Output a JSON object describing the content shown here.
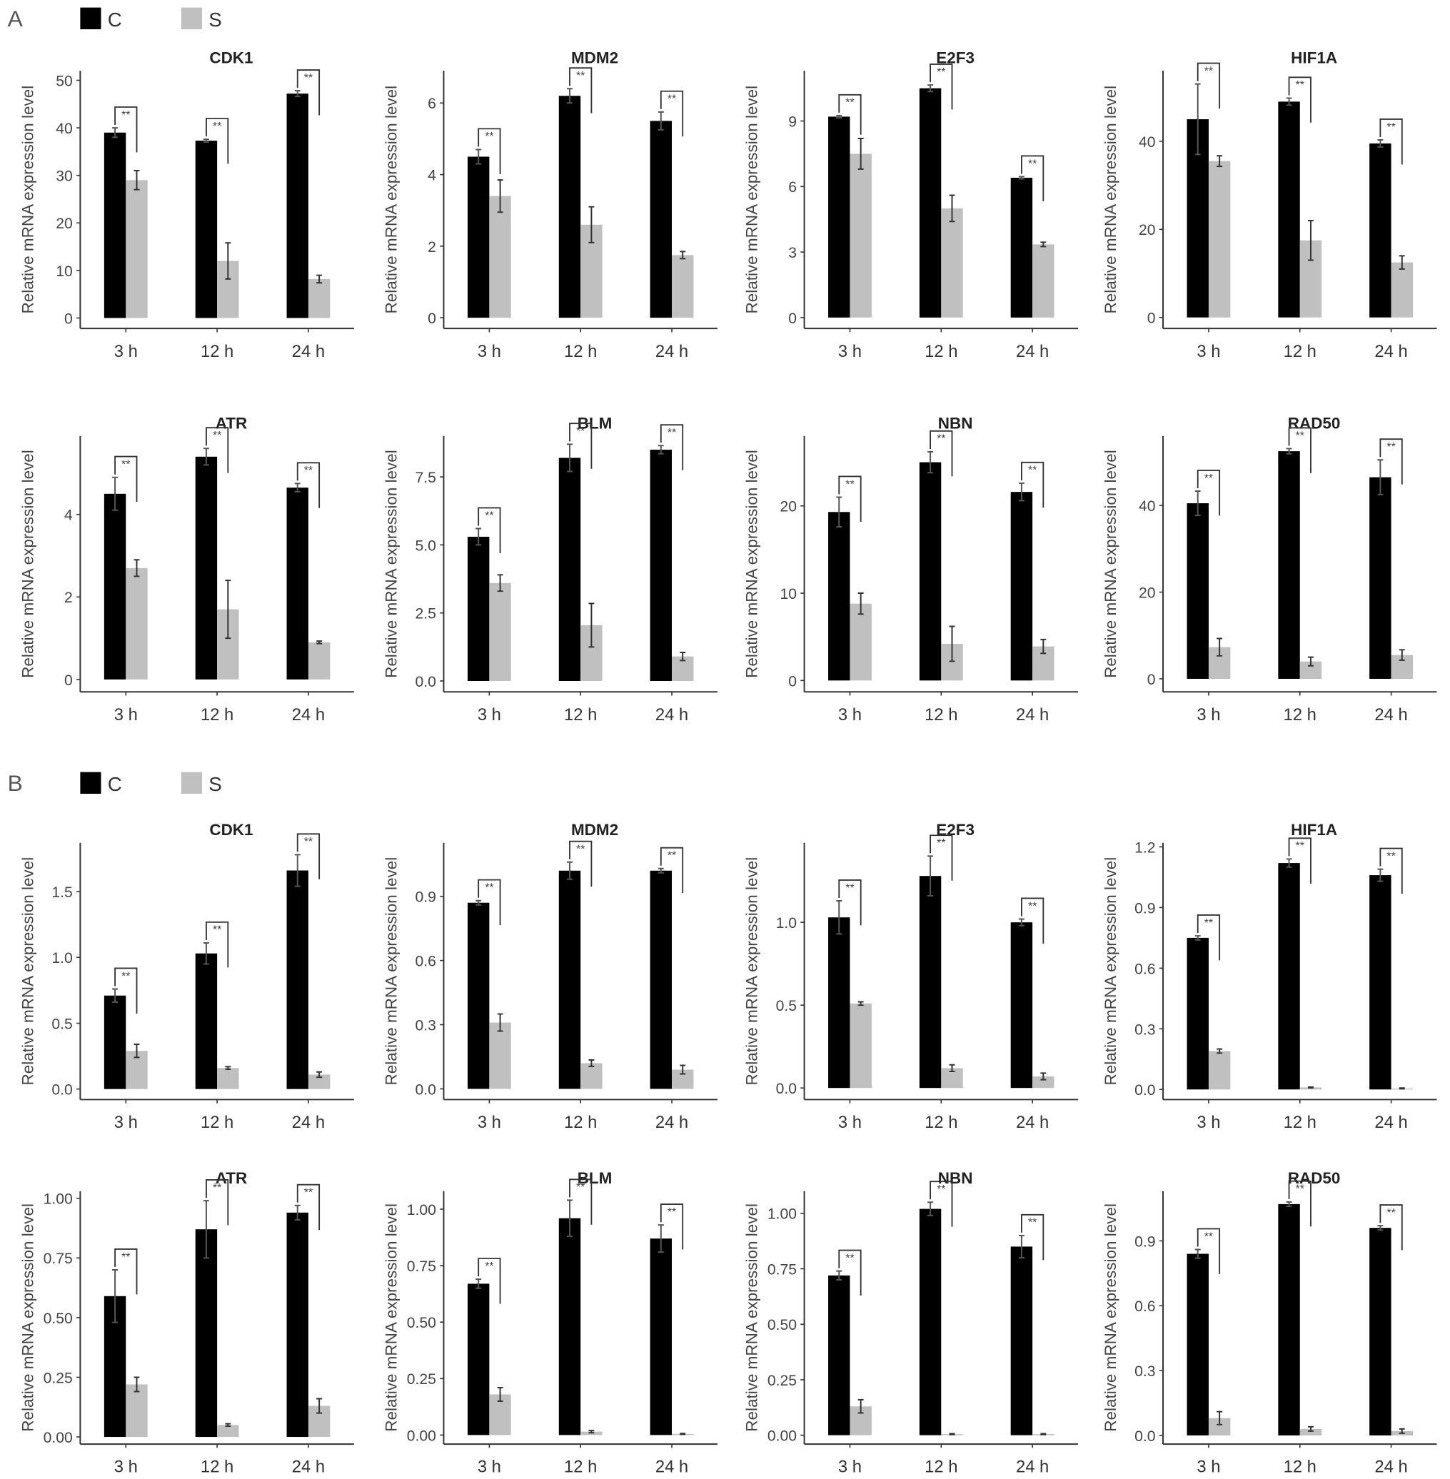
{
  "panel_labels": [
    "A",
    "B"
  ],
  "chart_data": [
    {
      "type": "bar",
      "title": "CDK1",
      "y_label": "Relative mRNA expression level",
      "categories": [
        "3 h",
        "12 h",
        "24 h"
      ],
      "series": [
        {
          "name": "C",
          "color": "#000000",
          "values": [
            39,
            37.3,
            47.2
          ],
          "errors": [
            1,
            0.3,
            0.6
          ]
        },
        {
          "name": "S",
          "color": "#c0c0c0",
          "values": [
            29,
            12,
            8.2
          ],
          "errors": [
            2,
            3.8,
            0.8
          ]
        }
      ],
      "ylim": [
        -2.2,
        52
      ],
      "yticks": [
        0,
        10,
        20,
        30,
        40,
        50
      ],
      "annotations": [
        "**",
        "**",
        "**"
      ]
    },
    {
      "type": "bar",
      "title": "MDM2",
      "y_label": "Relative mRNA expression level",
      "categories": [
        "3 h",
        "12 h",
        "24 h"
      ],
      "series": [
        {
          "name": "C",
          "color": "#000000",
          "values": [
            4.5,
            6.2,
            5.5
          ],
          "errors": [
            0.2,
            0.2,
            0.25
          ]
        },
        {
          "name": "S",
          "color": "#c0c0c0",
          "values": [
            3.4,
            2.6,
            1.75
          ],
          "errors": [
            0.45,
            0.5,
            0.1
          ]
        }
      ],
      "ylim": [
        -0.3,
        6.9
      ],
      "yticks": [
        0,
        2,
        4,
        6
      ],
      "annotations": [
        "**",
        "**",
        "**"
      ]
    },
    {
      "type": "bar",
      "title": "E2F3",
      "y_label": "Relative mRNA expression level",
      "categories": [
        "3 h",
        "12 h",
        "24 h"
      ],
      "series": [
        {
          "name": "C",
          "color": "#000000",
          "values": [
            9.2,
            10.5,
            6.4
          ],
          "errors": [
            0.05,
            0.15,
            0.05
          ]
        },
        {
          "name": "S",
          "color": "#c0c0c0",
          "values": [
            7.5,
            5.0,
            3.35
          ],
          "errors": [
            0.7,
            0.6,
            0.1
          ]
        }
      ],
      "ylim": [
        -0.5,
        11.3
      ],
      "yticks": [
        0,
        3,
        6,
        9
      ],
      "annotations": [
        "**",
        "**",
        "**"
      ]
    },
    {
      "type": "bar",
      "title": "HIF1A",
      "y_label": "Relative mRNA expression level",
      "categories": [
        "3 h",
        "12 h",
        "24 h"
      ],
      "series": [
        {
          "name": "C",
          "color": "#000000",
          "values": [
            45,
            49,
            39.5
          ],
          "errors": [
            8,
            0.8,
            0.8
          ]
        },
        {
          "name": "S",
          "color": "#c0c0c0",
          "values": [
            35.5,
            17.5,
            12.5
          ],
          "errors": [
            1.2,
            4.5,
            1.5
          ]
        }
      ],
      "ylim": [
        -2.5,
        56
      ],
      "yticks": [
        0,
        20,
        40
      ],
      "annotations": [
        "**",
        "**",
        "**"
      ]
    },
    {
      "type": "bar",
      "title": "ATR",
      "y_label": "Relative mRNA expression level",
      "categories": [
        "3 h",
        "12 h",
        "24 h"
      ],
      "series": [
        {
          "name": "C",
          "color": "#000000",
          "values": [
            4.5,
            5.4,
            4.65
          ],
          "errors": [
            0.4,
            0.2,
            0.1
          ]
        },
        {
          "name": "S",
          "color": "#c0c0c0",
          "values": [
            2.7,
            1.7,
            0.9
          ],
          "errors": [
            0.2,
            0.7,
            0.03
          ]
        }
      ],
      "ylim": [
        -0.3,
        5.9
      ],
      "yticks": [
        0,
        2,
        4
      ],
      "annotations": [
        "**",
        "**",
        "**"
      ]
    },
    {
      "type": "bar",
      "title": "BLM",
      "y_label": "Relative mRNA expression level",
      "categories": [
        "3 h",
        "12 h",
        "24 h"
      ],
      "series": [
        {
          "name": "C",
          "color": "#000000",
          "values": [
            5.3,
            8.2,
            8.5
          ],
          "errors": [
            0.3,
            0.5,
            0.15
          ]
        },
        {
          "name": "S",
          "color": "#c0c0c0",
          "values": [
            3.6,
            2.05,
            0.9
          ],
          "errors": [
            0.3,
            0.8,
            0.15
          ]
        }
      ],
      "ylim": [
        -0.4,
        9.0
      ],
      "yticks": [
        {
          "value": 0,
          "label": "0.0"
        },
        2.5,
        {
          "value": 5,
          "label": "5.0"
        },
        7.5
      ],
      "annotations": [
        "**",
        "**",
        "**"
      ]
    },
    {
      "type": "bar",
      "title": "NBN",
      "y_label": "Relative mRNA expression level",
      "categories": [
        "3 h",
        "12 h",
        "24 h"
      ],
      "series": [
        {
          "name": "C",
          "color": "#000000",
          "values": [
            19.3,
            25,
            21.6
          ],
          "errors": [
            1.7,
            1.2,
            1
          ]
        },
        {
          "name": "S",
          "color": "#c0c0c0",
          "values": [
            8.8,
            4.2,
            3.9
          ],
          "errors": [
            1.2,
            2,
            0.8
          ]
        }
      ],
      "ylim": [
        -1.3,
        28
      ],
      "yticks": [
        0,
        10,
        20
      ],
      "annotations": [
        "**",
        "**",
        "**"
      ]
    },
    {
      "type": "bar",
      "title": "RAD50",
      "y_label": "Relative mRNA expression level",
      "categories": [
        "3 h",
        "12 h",
        "24 h"
      ],
      "series": [
        {
          "name": "C",
          "color": "#000000",
          "values": [
            40.5,
            52.5,
            46.5
          ],
          "errors": [
            2.8,
            0.6,
            4
          ]
        },
        {
          "name": "S",
          "color": "#c0c0c0",
          "values": [
            7.3,
            4,
            5.5
          ],
          "errors": [
            2,
            1,
            1.2
          ]
        }
      ],
      "ylim": [
        -3,
        56
      ],
      "yticks": [
        0,
        20,
        40
      ],
      "annotations": [
        "**",
        "**",
        "**"
      ]
    },
    {
      "type": "bar",
      "title": "CDK1",
      "y_label": "Relative mRNA expression level",
      "categories": [
        "3 h",
        "12 h",
        "24 h"
      ],
      "series": [
        {
          "name": "C",
          "color": "#000000",
          "values": [
            0.71,
            1.03,
            1.66
          ],
          "errors": [
            0.05,
            0.08,
            0.12
          ]
        },
        {
          "name": "S",
          "color": "#c0c0c0",
          "values": [
            0.29,
            0.16,
            0.11
          ],
          "errors": [
            0.05,
            0.01,
            0.02
          ]
        }
      ],
      "ylim": [
        -0.08,
        1.87
      ],
      "yticks": [
        {
          "value": 0,
          "label": "0.0"
        },
        0.5,
        {
          "value": 1,
          "label": "1.0"
        },
        1.5
      ],
      "annotations": [
        "**",
        "**",
        "**"
      ]
    },
    {
      "type": "bar",
      "title": "MDM2",
      "y_label": "Relative mRNA expression level",
      "categories": [
        "3 h",
        "12 h",
        "24 h"
      ],
      "series": [
        {
          "name": "C",
          "color": "#000000",
          "values": [
            0.87,
            1.02,
            1.02
          ],
          "errors": [
            0.01,
            0.04,
            0.01
          ]
        },
        {
          "name": "S",
          "color": "#c0c0c0",
          "values": [
            0.31,
            0.12,
            0.09
          ],
          "errors": [
            0.04,
            0.015,
            0.02
          ]
        }
      ],
      "ylim": [
        -0.05,
        1.15
      ],
      "yticks": [
        {
          "value": 0,
          "label": "0.0"
        },
        0.3,
        0.6,
        0.9
      ],
      "annotations": [
        "**",
        "**",
        "**"
      ]
    },
    {
      "type": "bar",
      "title": "E2F3",
      "y_label": "Relative mRNA expression level",
      "categories": [
        "3 h",
        "12 h",
        "24 h"
      ],
      "series": [
        {
          "name": "C",
          "color": "#000000",
          "values": [
            1.03,
            1.28,
            1.0
          ],
          "errors": [
            0.1,
            0.12,
            0.02
          ]
        },
        {
          "name": "S",
          "color": "#c0c0c0",
          "values": [
            0.51,
            0.12,
            0.07
          ],
          "errors": [
            0.01,
            0.02,
            0.02
          ]
        }
      ],
      "ylim": [
        -0.07,
        1.48
      ],
      "yticks": [
        {
          "value": 0,
          "label": "0.0"
        },
        0.5,
        {
          "value": 1,
          "label": "1.0"
        }
      ],
      "annotations": [
        "**",
        "**",
        "**"
      ]
    },
    {
      "type": "bar",
      "title": "HIF1A",
      "y_label": "Relative mRNA expression level",
      "categories": [
        "3 h",
        "12 h",
        "24 h"
      ],
      "series": [
        {
          "name": "C",
          "color": "#000000",
          "values": [
            0.75,
            1.12,
            1.06
          ],
          "errors": [
            0.01,
            0.02,
            0.03
          ]
        },
        {
          "name": "S",
          "color": "#c0c0c0",
          "values": [
            0.19,
            0.01,
            0.005
          ],
          "errors": [
            0.01,
            0.002,
            0.002
          ]
        }
      ],
      "ylim": [
        -0.05,
        1.22
      ],
      "yticks": [
        {
          "value": 0,
          "label": "0.0"
        },
        0.3,
        0.6,
        0.9,
        1.2
      ],
      "annotations": [
        "**",
        "**",
        "**"
      ]
    },
    {
      "type": "bar",
      "title": "ATR",
      "y_label": "Relative mRNA expression level",
      "categories": [
        "3 h",
        "12 h",
        "24 h"
      ],
      "series": [
        {
          "name": "C",
          "color": "#000000",
          "values": [
            0.59,
            0.87,
            0.94
          ],
          "errors": [
            0.11,
            0.12,
            0.03
          ]
        },
        {
          "name": "S",
          "color": "#c0c0c0",
          "values": [
            0.22,
            0.05,
            0.13
          ],
          "errors": [
            0.03,
            0.005,
            0.03
          ]
        }
      ],
      "ylim": [
        -0.03,
        1.03
      ],
      "yticks": [
        {
          "value": 0,
          "label": "0.00"
        },
        0.25,
        {
          "value": 0.5,
          "label": "0.50"
        },
        0.75,
        {
          "value": 1,
          "label": "1.00"
        }
      ],
      "annotations": [
        "**",
        "**",
        "**"
      ]
    },
    {
      "type": "bar",
      "title": "BLM",
      "y_label": "Relative mRNA expression level",
      "categories": [
        "3 h",
        "12 h",
        "24 h"
      ],
      "series": [
        {
          "name": "C",
          "color": "#000000",
          "values": [
            0.67,
            0.96,
            0.87
          ],
          "errors": [
            0.02,
            0.08,
            0.06
          ]
        },
        {
          "name": "S",
          "color": "#c0c0c0",
          "values": [
            0.18,
            0.015,
            0.005
          ],
          "errors": [
            0.03,
            0.005,
            0.002
          ]
        }
      ],
      "ylim": [
        -0.04,
        1.08
      ],
      "yticks": [
        {
          "value": 0,
          "label": "0.00"
        },
        0.25,
        {
          "value": 0.5,
          "label": "0.50"
        },
        0.75,
        {
          "value": 1,
          "label": "1.00"
        }
      ],
      "annotations": [
        "**",
        "**",
        "**"
      ]
    },
    {
      "type": "bar",
      "title": "NBN",
      "y_label": "Relative mRNA expression level",
      "categories": [
        "3 h",
        "12 h",
        "24 h"
      ],
      "series": [
        {
          "name": "C",
          "color": "#000000",
          "values": [
            0.72,
            1.02,
            0.85
          ],
          "errors": [
            0.02,
            0.03,
            0.05
          ]
        },
        {
          "name": "S",
          "color": "#c0c0c0",
          "values": [
            0.13,
            0.005,
            0.005
          ],
          "errors": [
            0.03,
            0.002,
            0.002
          ]
        }
      ],
      "ylim": [
        -0.04,
        1.1
      ],
      "yticks": [
        {
          "value": 0,
          "label": "0.00"
        },
        0.25,
        {
          "value": 0.5,
          "label": "0.50"
        },
        0.75,
        {
          "value": 1,
          "label": "1.00"
        }
      ],
      "annotations": [
        "**",
        "**",
        "**"
      ]
    },
    {
      "type": "bar",
      "title": "RAD50",
      "y_label": "Relative mRNA expression level",
      "categories": [
        "3 h",
        "12 h",
        "24 h"
      ],
      "series": [
        {
          "name": "C",
          "color": "#000000",
          "values": [
            0.84,
            1.07,
            0.96
          ],
          "errors": [
            0.02,
            0.01,
            0.01
          ]
        },
        {
          "name": "S",
          "color": "#c0c0c0",
          "values": [
            0.08,
            0.03,
            0.02
          ],
          "errors": [
            0.03,
            0.01,
            0.01
          ]
        }
      ],
      "ylim": [
        -0.04,
        1.13
      ],
      "yticks": [
        {
          "value": 0,
          "label": "0.0"
        },
        0.3,
        0.6,
        0.9
      ],
      "annotations": [
        "**",
        "**",
        "**"
      ]
    }
  ]
}
